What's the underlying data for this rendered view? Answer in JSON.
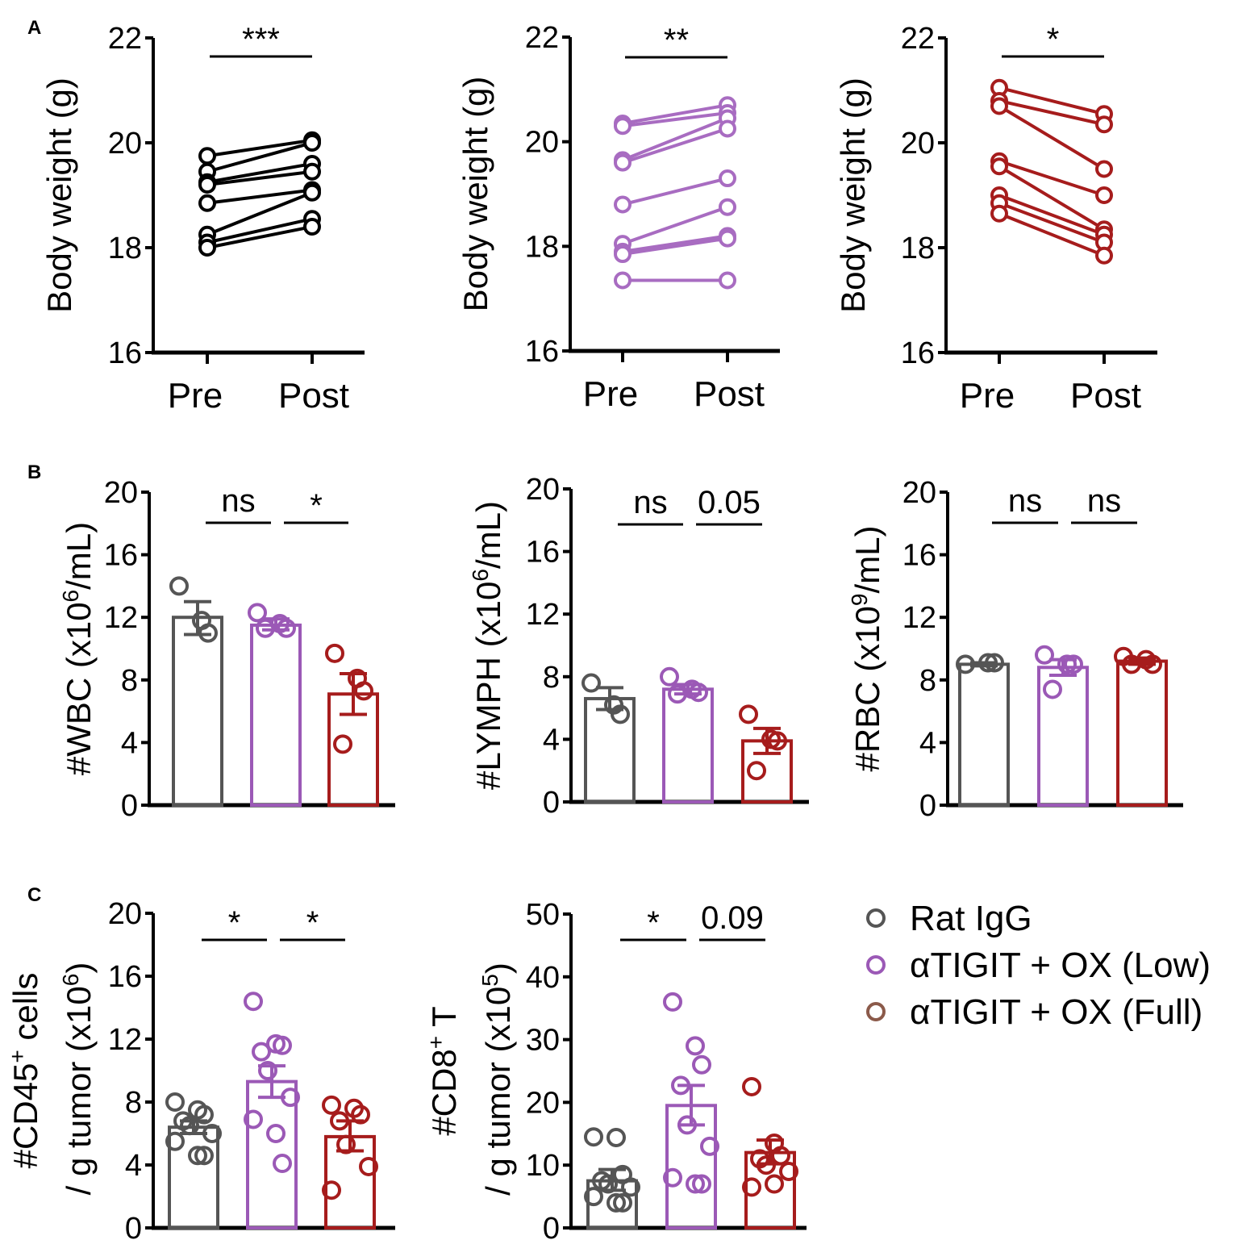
{
  "colors": {
    "igg": "#555555",
    "low": "#9B59B6",
    "full": "#A61C1C",
    "axis": "#000000"
  },
  "panel_labels": [
    "A",
    "B",
    "C"
  ],
  "legend": [
    {
      "label": "Rat IgG",
      "color": "#555555"
    },
    {
      "label": "αTIGIT + OX (Low)",
      "color": "#9B59B6"
    },
    {
      "label": "αTIGIT + OX (Full)",
      "color": "#A61C1C"
    }
  ],
  "chart_data": [
    {
      "type": "paired-line",
      "panel": "A",
      "group": "Rat IgG",
      "color": "#000000",
      "ylabel": [
        {
          "t": "Body weight (g)"
        }
      ],
      "ylim": [
        16,
        22
      ],
      "yticks": [
        "16",
        "18",
        "20",
        "22"
      ],
      "categories": [
        "Pre",
        "Post"
      ],
      "significance": [
        {
          "label": "***",
          "pair": [
            0,
            1
          ]
        }
      ],
      "pairs": [
        [
          19.75,
          20.05
        ],
        [
          19.45,
          20.0
        ],
        [
          19.25,
          19.6
        ],
        [
          19.2,
          19.45
        ],
        [
          18.85,
          19.1
        ],
        [
          18.25,
          19.05
        ],
        [
          18.1,
          18.55
        ],
        [
          18.0,
          18.4
        ]
      ]
    },
    {
      "type": "paired-line",
      "panel": "A",
      "group": "αTIGIT + OX (Low)",
      "color": "#A86CC1",
      "ylabel": [
        {
          "t": "Body weight (g)"
        }
      ],
      "ylim": [
        16,
        22
      ],
      "yticks": [
        "16",
        "18",
        "20",
        "22"
      ],
      "categories": [
        "Pre",
        "Post"
      ],
      "significance": [
        {
          "label": "**",
          "pair": [
            0,
            1
          ]
        }
      ],
      "pairs": [
        [
          20.35,
          20.7
        ],
        [
          20.3,
          20.55
        ],
        [
          19.65,
          20.45
        ],
        [
          19.6,
          20.25
        ],
        [
          18.8,
          19.3
        ],
        [
          18.05,
          18.75
        ],
        [
          17.9,
          18.2
        ],
        [
          17.85,
          18.15
        ],
        [
          17.35,
          17.35
        ]
      ]
    },
    {
      "type": "paired-line",
      "panel": "A",
      "group": "αTIGIT + OX (Full)",
      "color": "#A61C1C",
      "ylabel": [
        {
          "t": "Body weight (g)"
        }
      ],
      "ylim": [
        16,
        22
      ],
      "yticks": [
        "16",
        "18",
        "20",
        "22"
      ],
      "categories": [
        "Pre",
        "Post"
      ],
      "significance": [
        {
          "label": "*",
          "pair": [
            0,
            1
          ]
        }
      ],
      "pairs": [
        [
          21.05,
          20.55
        ],
        [
          20.8,
          20.35
        ],
        [
          20.7,
          19.5
        ],
        [
          19.65,
          19.0
        ],
        [
          19.55,
          18.35
        ],
        [
          19.0,
          18.25
        ],
        [
          18.85,
          18.1
        ],
        [
          18.65,
          17.85
        ]
      ]
    },
    {
      "type": "bar",
      "panel": "B",
      "ylabel": [
        {
          "t": "#WBC (x10"
        },
        {
          "t": "6",
          "sup": true
        },
        {
          "t": "/mL)"
        }
      ],
      "ylim": [
        0,
        20
      ],
      "yticks": [
        "0",
        "4",
        "8",
        "12",
        "16",
        "20"
      ],
      "significance": [
        {
          "label": "ns",
          "pair": [
            0,
            1
          ]
        },
        {
          "label": "*",
          "pair": [
            1,
            2
          ]
        }
      ],
      "series": [
        {
          "name": "Rat IgG",
          "mean": 12.0,
          "sem": [
            10.9,
            13.0
          ],
          "points": [
            14.0,
            11.8,
            11.0
          ]
        },
        {
          "name": "αTIGIT + OX (Low)",
          "mean": 11.5,
          "sem": [
            11.2,
            11.9
          ],
          "points": [
            12.3,
            11.6,
            11.3,
            11.3
          ]
        },
        {
          "name": "αTIGIT + OX (Full)",
          "mean": 7.1,
          "sem": [
            5.8,
            8.4
          ],
          "points": [
            9.7,
            8.1,
            7.3,
            3.9
          ]
        }
      ]
    },
    {
      "type": "bar",
      "panel": "B",
      "ylabel": [
        {
          "t": "#LYMPH (x10"
        },
        {
          "t": "6",
          "sup": true
        },
        {
          "t": "/mL)"
        }
      ],
      "ylim": [
        0,
        20
      ],
      "yticks": [
        "0",
        "4",
        "8",
        "12",
        "16",
        "20"
      ],
      "significance": [
        {
          "label": "ns",
          "pair": [
            0,
            1
          ]
        },
        {
          "label": "0.05",
          "pair": [
            1,
            2
          ]
        }
      ],
      "series": [
        {
          "name": "Rat IgG",
          "mean": 6.6,
          "sem": [
            5.9,
            7.3
          ],
          "points": [
            7.6,
            6.2,
            5.6
          ]
        },
        {
          "name": "αTIGIT + OX (Low)",
          "mean": 7.2,
          "sem": [
            6.9,
            7.5
          ],
          "points": [
            8.0,
            7.2,
            7.0,
            6.9
          ]
        },
        {
          "name": "αTIGIT + OX (Full)",
          "mean": 3.9,
          "sem": [
            3.1,
            4.7
          ],
          "points": [
            5.6,
            4.0,
            3.9,
            2.0
          ]
        }
      ]
    },
    {
      "type": "bar",
      "panel": "B",
      "ylabel": [
        {
          "t": "#RBC (x10"
        },
        {
          "t": "9",
          "sup": true
        },
        {
          "t": "/mL)"
        }
      ],
      "ylim": [
        0,
        20
      ],
      "yticks": [
        "0",
        "4",
        "8",
        "12",
        "16",
        "20"
      ],
      "significance": [
        {
          "label": "ns",
          "pair": [
            0,
            1
          ]
        },
        {
          "label": "ns",
          "pair": [
            1,
            2
          ]
        }
      ],
      "series": [
        {
          "name": "Rat IgG",
          "mean": 9.0,
          "sem": [
            8.9,
            9.1
          ],
          "points": [
            9.0,
            9.1,
            9.1
          ]
        },
        {
          "name": "αTIGIT + OX (Low)",
          "mean": 8.8,
          "sem": [
            8.3,
            9.3
          ],
          "points": [
            9.6,
            9.0,
            9.0,
            7.4
          ]
        },
        {
          "name": "αTIGIT + OX (Full)",
          "mean": 9.2,
          "sem": [
            9.0,
            9.4
          ],
          "points": [
            9.5,
            9.3,
            9.0,
            9.0
          ]
        }
      ]
    },
    {
      "type": "bar",
      "panel": "C",
      "ylabel": [
        {
          "t": "#CD45"
        },
        {
          "t": "+",
          "sup": true
        },
        {
          "t": " cells"
        }
      ],
      "ylabel2": [
        {
          "t": "/ g tumor (x10"
        },
        {
          "t": "6",
          "sup": true
        },
        {
          "t": ")"
        }
      ],
      "ylim": [
        0,
        20
      ],
      "yticks": [
        "0",
        "4",
        "8",
        "12",
        "16",
        "20"
      ],
      "significance": [
        {
          "label": "*",
          "pair": [
            0,
            1
          ]
        },
        {
          "label": "*",
          "pair": [
            1,
            2
          ]
        }
      ],
      "series": [
        {
          "name": "Rat IgG",
          "mean": 6.4,
          "sem": [
            6.0,
            6.8
          ],
          "points": [
            8.0,
            7.5,
            7.2,
            6.8,
            6.5,
            6.0,
            5.5,
            4.6,
            4.6
          ]
        },
        {
          "name": "αTIGIT + OX (Low)",
          "mean": 9.3,
          "sem": [
            8.3,
            10.3
          ],
          "points": [
            14.4,
            11.7,
            11.6,
            11.2,
            10.0,
            8.3,
            6.9,
            6.0,
            4.1
          ]
        },
        {
          "name": "αTIGIT + OX (Full)",
          "mean": 5.8,
          "sem": [
            4.9,
            6.8
          ],
          "points": [
            7.8,
            7.6,
            7.2,
            6.8,
            5.3,
            3.9,
            2.4
          ]
        }
      ]
    },
    {
      "type": "bar",
      "panel": "C",
      "ylabel": [
        {
          "t": "#CD8"
        },
        {
          "t": "+",
          "sup": true
        },
        {
          "t": " T"
        }
      ],
      "ylabel2": [
        {
          "t": "/ g tumor (x10"
        },
        {
          "t": "5",
          "sup": true
        },
        {
          "t": ")"
        }
      ],
      "ylim": [
        0,
        50
      ],
      "yticks": [
        "0",
        "10",
        "20",
        "30",
        "40",
        "50"
      ],
      "significance": [
        {
          "label": "*",
          "pair": [
            0,
            1
          ]
        },
        {
          "label": "0.09",
          "pair": [
            1,
            2
          ]
        }
      ],
      "series": [
        {
          "name": "Rat IgG",
          "mean": 7.5,
          "sem": [
            6.0,
            9.3
          ],
          "points": [
            14.5,
            14.4,
            8.5,
            7.5,
            7.0,
            6.5,
            5.0,
            4.0,
            4.0
          ]
        },
        {
          "name": "αTIGIT + OX (Low)",
          "mean": 19.5,
          "sem": [
            16.4,
            22.7
          ],
          "points": [
            36.0,
            29.0,
            26.0,
            22.7,
            16.4,
            13.0,
            8.0,
            7.0,
            7.0
          ]
        },
        {
          "name": "αTIGIT + OX (Full)",
          "mean": 12.0,
          "sem": [
            10.2,
            14.0
          ],
          "points": [
            22.5,
            13.5,
            11.5,
            11.0,
            10.0,
            9.0,
            6.5,
            7.0
          ]
        }
      ]
    }
  ]
}
